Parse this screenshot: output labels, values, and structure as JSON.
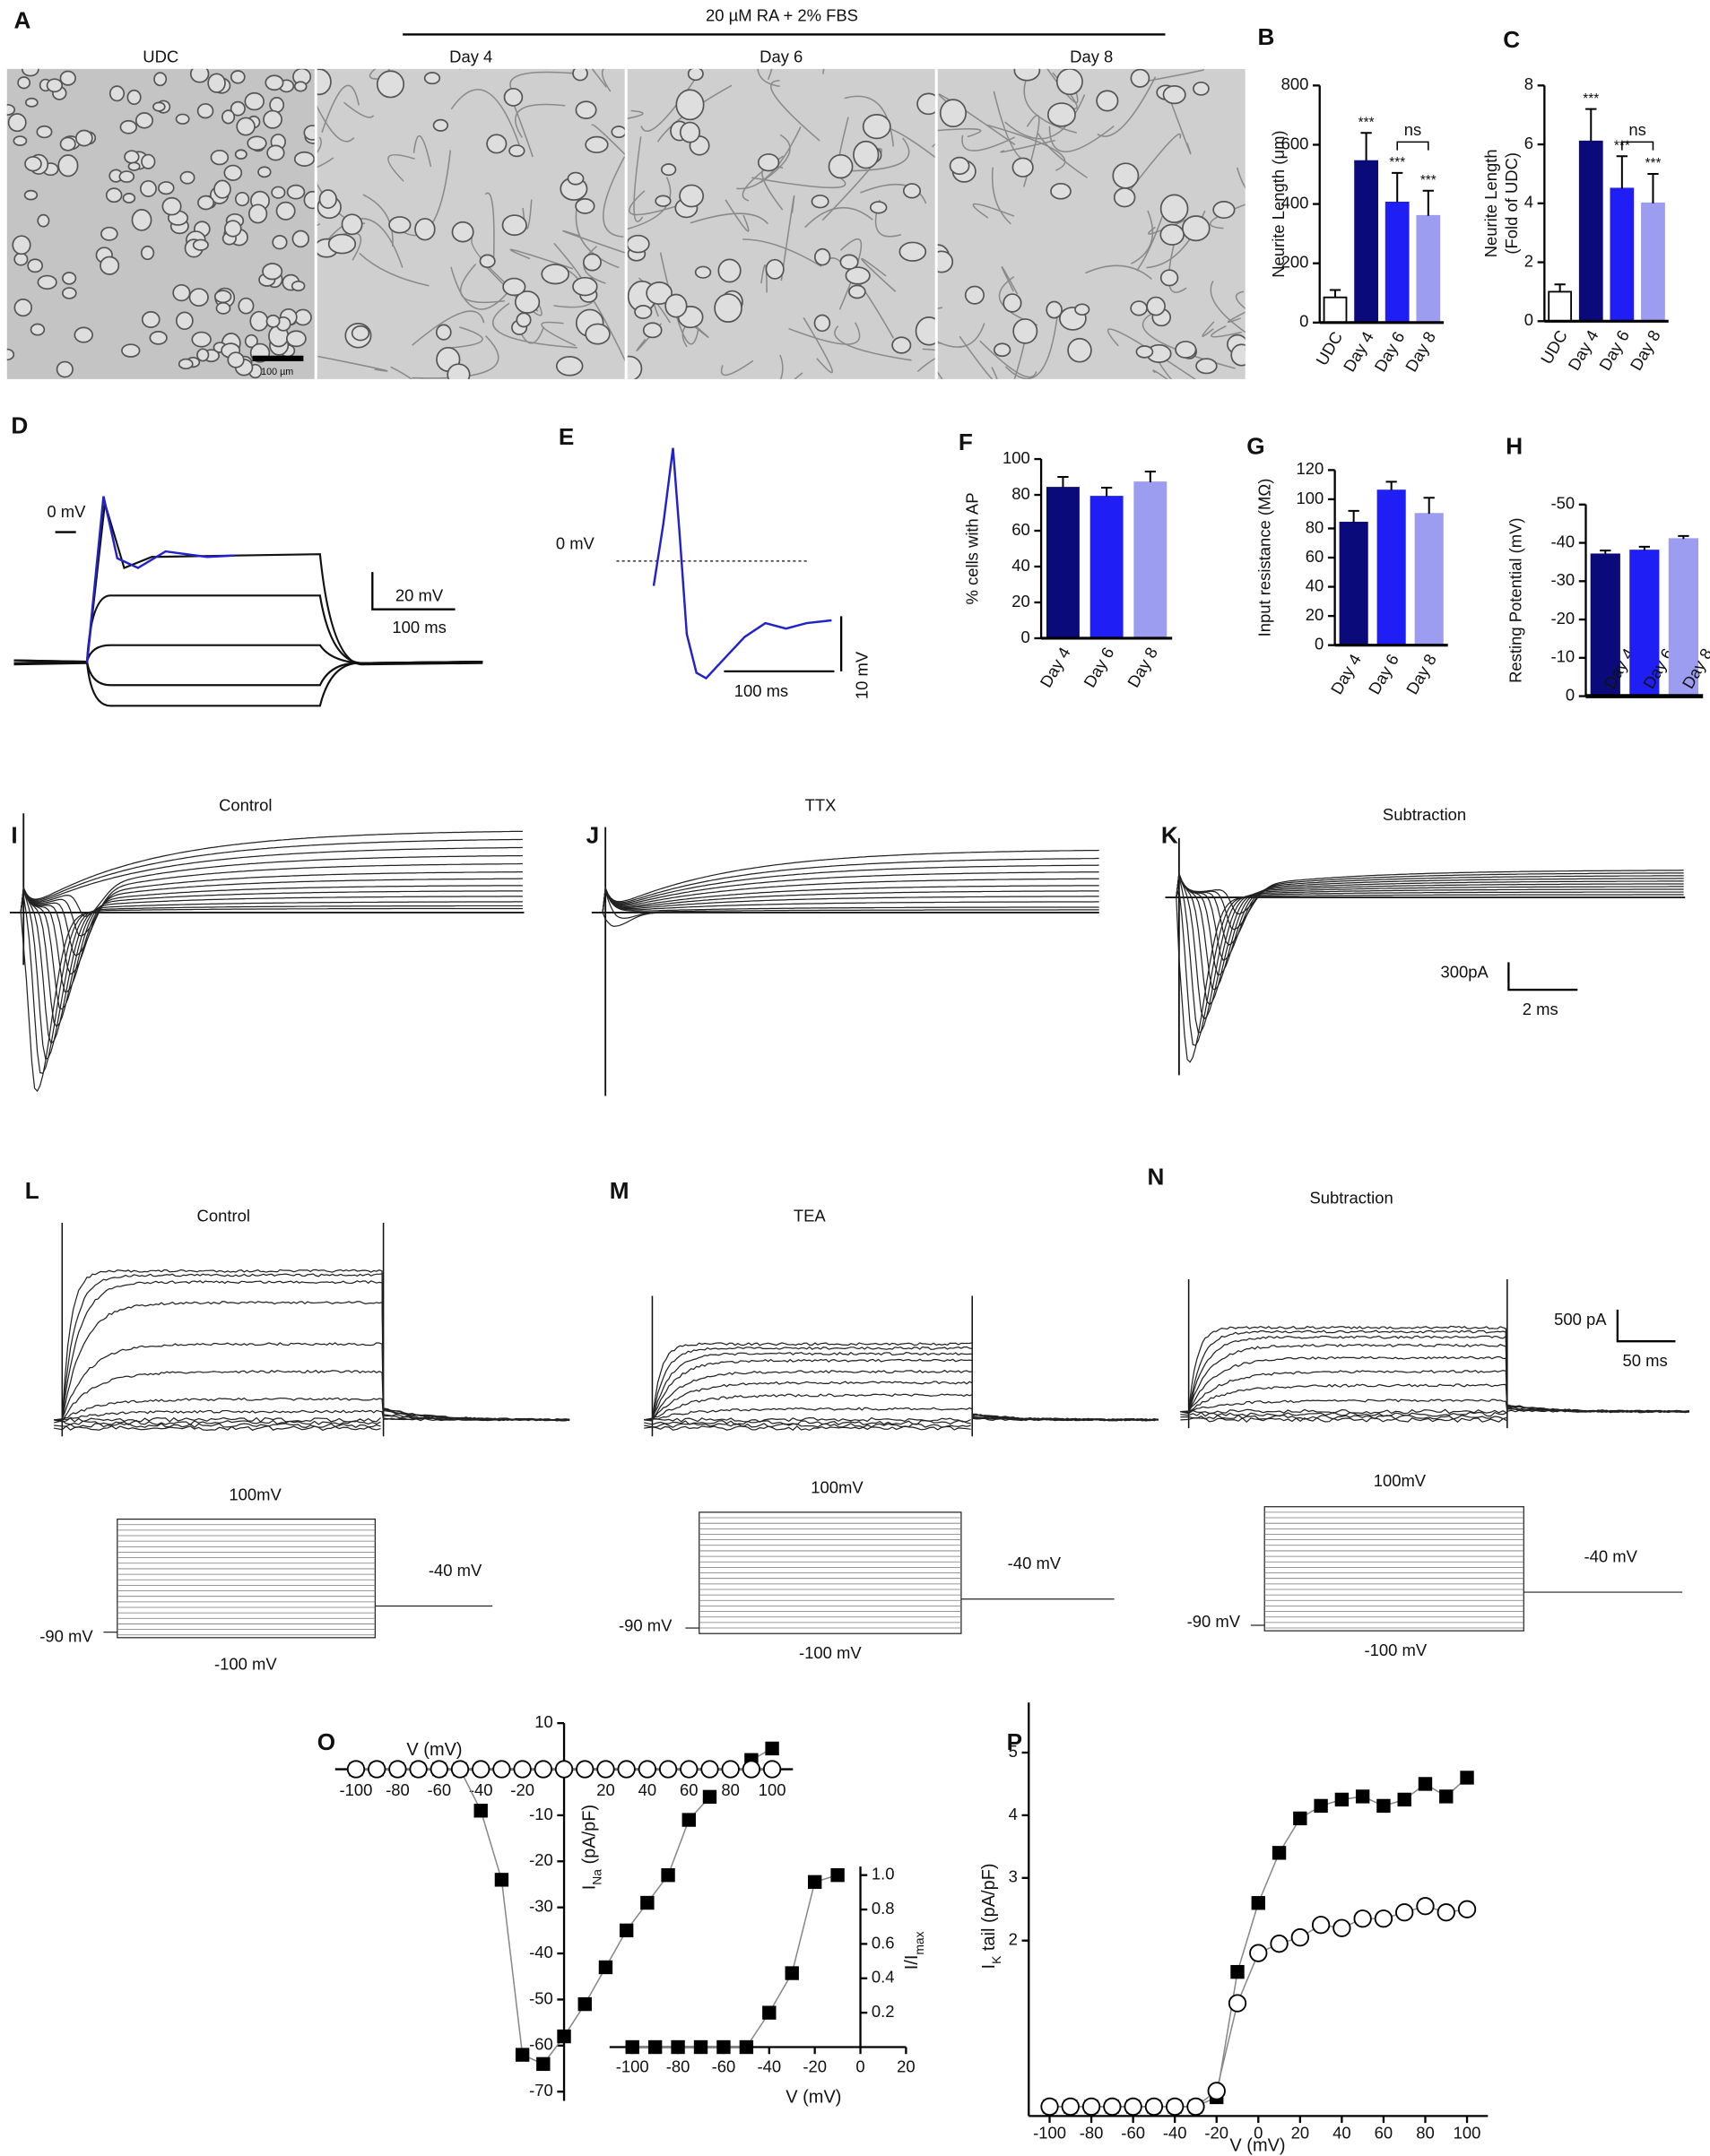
{
  "panel_labels": [
    "A",
    "B",
    "C",
    "D",
    "E",
    "F",
    "G",
    "H",
    "I",
    "J",
    "K",
    "L",
    "M",
    "N",
    "O",
    "P"
  ],
  "micrographs": {
    "treatment": "20 µM RA + 2% FBS",
    "titles": [
      "UDC",
      "Day 4",
      "Day 6",
      "Day 8"
    ],
    "scale_bar": "100 µm"
  },
  "traces": {
    "D": {
      "zero": "0 mV",
      "scale_v": "20 mV",
      "scale_t": "100 ms"
    },
    "E": {
      "zero": "0 mV",
      "scale_t": "100 ms",
      "scale_v": "10 mV"
    },
    "I": {
      "title": "Control"
    },
    "J": {
      "title": "TTX"
    },
    "K": {
      "title": "Subtraction",
      "scale_i": "300pA",
      "scale_t": "2 ms"
    },
    "L": {
      "title": "Control"
    },
    "M": {
      "title": "TEA"
    },
    "N": {
      "title": "Subtraction",
      "scale_i": "500 pA",
      "scale_t": "50 ms"
    },
    "protocols": [
      {
        "top": "100mV",
        "hold": "-40 mV",
        "start": "-90 mV",
        "bottom": "-100 mV"
      },
      {
        "top": "100mV",
        "hold": "-40 mV",
        "start": "-90 mV",
        "bottom": "-100 mV"
      },
      {
        "top": "100mV",
        "hold": "-40 mV",
        "start": "-90 mV",
        "bottom": "-100 mV"
      }
    ]
  },
  "chart_data": [
    {
      "type": "bar",
      "categories": [
        "UDC",
        "Day 4",
        "Day 6",
        "Day 8"
      ],
      "values": [
        85,
        545,
        405,
        360
      ],
      "errors": [
        25,
        95,
        100,
        85
      ],
      "colors": [
        "#ffffff",
        "#0a0a7a",
        "#1e1ef5",
        "#9c9cf0"
      ],
      "ylabel": "Neurite Length (μm)",
      "ylim": [
        0,
        800
      ],
      "yticks": [
        0,
        200,
        400,
        600,
        800
      ],
      "significance": [
        null,
        "***",
        "***",
        "***"
      ],
      "bracket_label": "ns"
    },
    {
      "type": "bar",
      "categories": [
        "UDC",
        "Day 4",
        "Day 6",
        "Day 8"
      ],
      "values": [
        1,
        6.1,
        4.5,
        4.0
      ],
      "errors": [
        0.25,
        1.1,
        1.1,
        1.0
      ],
      "colors": [
        "#ffffff",
        "#0a0a7a",
        "#1e1ef5",
        "#9c9cf0"
      ],
      "ylabel_lines": [
        "Neurite Length",
        "(Fold of UDC)"
      ],
      "ylim": [
        0,
        8
      ],
      "yticks": [
        0,
        2,
        4,
        6,
        8
      ],
      "significance": [
        null,
        "***",
        "***",
        "***"
      ],
      "bracket_label": "ns"
    },
    {
      "type": "bar",
      "categories": [
        "Day 4",
        "Day 6",
        "Day 8"
      ],
      "values": [
        84,
        79,
        87
      ],
      "errors": [
        6,
        5,
        6
      ],
      "colors": [
        "#0a0a7a",
        "#1e1ef5",
        "#9c9cf0"
      ],
      "ylabel": "% cells with AP",
      "ylim": [
        0,
        100
      ],
      "yticks": [
        0,
        20,
        40,
        60,
        80,
        100
      ]
    },
    {
      "type": "bar",
      "categories": [
        "Day 4",
        "Day 6",
        "Day 8"
      ],
      "values": [
        84,
        106,
        90
      ],
      "errors": [
        8,
        6,
        11
      ],
      "colors": [
        "#0a0a7a",
        "#1e1ef5",
        "#9c9cf0"
      ],
      "ylabel": "Input resistance (MΩ)",
      "ylim": [
        0,
        120
      ],
      "yticks": [
        0,
        20,
        40,
        60,
        80,
        100,
        120
      ]
    },
    {
      "type": "bar",
      "categories": [
        "Day 4",
        "Day 6",
        "Day 8"
      ],
      "values": [
        -37,
        -38,
        -41
      ],
      "errors": [
        1,
        1,
        0.8
      ],
      "colors": [
        "#0a0a7a",
        "#1e1ef5",
        "#9c9cf0"
      ],
      "ylabel": "Resting Potential (mV)",
      "ylim": [
        -50,
        0
      ],
      "yticks": [
        0,
        -10,
        -20,
        -30,
        -40,
        -50
      ]
    },
    {
      "type": "line",
      "xlabel": "V (mV)",
      "ylabel": [
        "I",
        "Na",
        " (pA/pF)"
      ],
      "x": [
        -100,
        -90,
        -80,
        -70,
        -60,
        -50,
        -40,
        -30,
        -20,
        -10,
        0,
        10,
        20,
        30,
        40,
        50,
        60,
        70,
        80,
        90,
        100
      ],
      "xlim": [
        -110,
        110
      ],
      "ylim": [
        -72,
        10
      ],
      "xticks": [
        -100,
        -80,
        -60,
        -40,
        -20,
        20,
        40,
        60,
        80,
        100
      ],
      "yticks": [
        10,
        -10,
        -20,
        -30,
        -40,
        -50,
        -60,
        -70
      ],
      "series": [
        {
          "marker": "square",
          "color": "#000000",
          "values": [
            0,
            0,
            0,
            0,
            0,
            0,
            -9,
            -24,
            -62,
            -64,
            -58,
            -51,
            -43,
            -35,
            -29,
            -23,
            -11,
            -6,
            null,
            2,
            4.5
          ]
        },
        {
          "marker": "circle",
          "color": "#000000",
          "values": [
            0,
            0,
            0,
            0,
            0,
            0,
            0,
            0,
            0,
            0,
            0,
            0,
            0,
            0,
            0,
            0,
            0,
            0,
            0,
            0,
            0
          ]
        }
      ]
    },
    {
      "type": "line",
      "xlabel": "V (mV)",
      "ylabel": [
        "I/I",
        "max"
      ],
      "x": [
        -100,
        -90,
        -80,
        -70,
        -60,
        -50,
        -40,
        -30,
        -20,
        -10
      ],
      "xlim": [
        -110,
        20
      ],
      "ylim": [
        0,
        1.05
      ],
      "xticks": [
        -100,
        -80,
        -60,
        -40,
        -20,
        0,
        20
      ],
      "yticks": [
        0.2,
        0.4,
        0.6,
        0.8,
        {
          "value": 1,
          "label": "1.0"
        }
      ],
      "series": [
        {
          "marker": "square",
          "color": "#000000",
          "values": [
            0,
            0,
            0,
            0,
            0,
            0,
            0.2,
            0.43,
            0.96,
            1.0
          ]
        }
      ]
    },
    {
      "type": "line",
      "xlabel": "V (mV)",
      "ylabel": [
        "I",
        "K",
        " tail (pA/pF)"
      ],
      "x": [
        -100,
        -90,
        -80,
        -70,
        -60,
        -50,
        -40,
        -30,
        -20,
        -10,
        0,
        10,
        20,
        30,
        40,
        50,
        60,
        70,
        80,
        90,
        100
      ],
      "xlim": [
        -110,
        110
      ],
      "ylim": [
        -0.8,
        5.8
      ],
      "xticks": [
        -100,
        -80,
        -60,
        -40,
        -20,
        0,
        20,
        40,
        60,
        80,
        100
      ],
      "yticks": [
        2,
        3,
        4,
        5
      ],
      "series": [
        {
          "marker": "square",
          "color": "#000000",
          "values": [
            -0.65,
            -0.65,
            -0.65,
            -0.65,
            -0.65,
            -0.65,
            -0.65,
            -0.65,
            -0.5,
            1.5,
            2.6,
            3.4,
            3.95,
            4.15,
            4.25,
            4.3,
            4.15,
            4.25,
            4.5,
            4.3,
            4.6
          ]
        },
        {
          "marker": "circle",
          "color": "#000000",
          "values": [
            -0.65,
            -0.65,
            -0.65,
            -0.65,
            -0.65,
            -0.65,
            -0.65,
            -0.65,
            -0.4,
            1.0,
            1.8,
            1.95,
            2.05,
            2.25,
            2.2,
            2.35,
            2.35,
            2.45,
            2.55,
            2.45,
            2.5
          ]
        }
      ]
    }
  ]
}
